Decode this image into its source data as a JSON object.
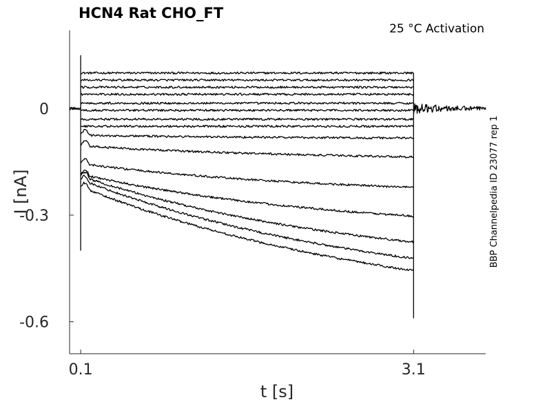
{
  "chart_data": {
    "type": "line",
    "title": "HCN4  Rat  CHO_FT",
    "annotation": "25 °C  Activation",
    "side_label": "BBP Channelpedia ID 23077 rep 1",
    "xlabel": "t [s]",
    "ylabel": "I [nA]",
    "xlim": [
      0.0,
      3.75
    ],
    "ylim": [
      -0.69,
      0.22
    ],
    "x_ticks": [
      {
        "value": 0.1,
        "label": "0.1"
      },
      {
        "value": 3.1,
        "label": "3.1"
      }
    ],
    "y_ticks": [
      {
        "value": 0,
        "label": "0"
      },
      {
        "value": -0.3,
        "label": "-0.3"
      },
      {
        "value": -0.6,
        "label": "-0.6"
      }
    ],
    "grid": false,
    "legend": "none",
    "line_color": "#000000",
    "pulse_start": 0.1,
    "pulse_end": 3.1,
    "baseline": 0.0,
    "traces": [
      {
        "start": 0.1,
        "end": 0.1
      },
      {
        "start": 0.08,
        "end": 0.08
      },
      {
        "start": 0.06,
        "end": 0.06
      },
      {
        "start": 0.04,
        "end": 0.04
      },
      {
        "start": 0.015,
        "end": 0.015
      },
      {
        "start": -0.005,
        "end": -0.005
      },
      {
        "start": -0.03,
        "end": -0.03
      },
      {
        "start": -0.05,
        "end": -0.05
      },
      {
        "start": -0.075,
        "end": -0.085
      },
      {
        "start": -0.105,
        "end": -0.145
      },
      {
        "start": -0.155,
        "end": -0.245
      },
      {
        "start": -0.185,
        "end": -0.35
      },
      {
        "start": -0.19,
        "end": -0.46
      },
      {
        "start": -0.2,
        "end": -0.535
      },
      {
        "start": -0.22,
        "end": -0.59
      }
    ]
  }
}
